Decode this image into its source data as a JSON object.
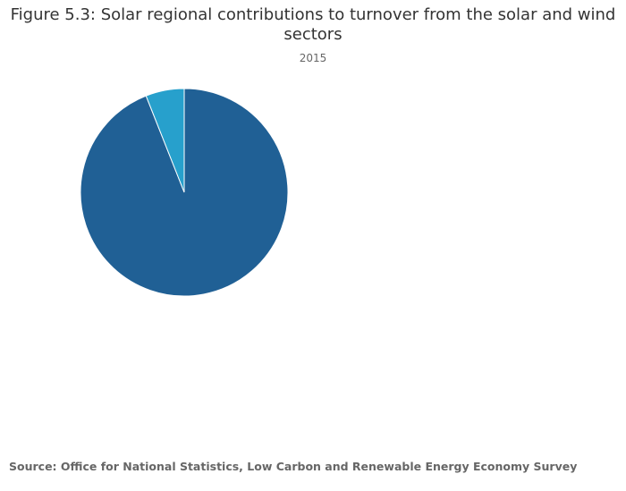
{
  "chart_data": {
    "type": "pie",
    "title_lines": [
      "Figure 5.3: Solar regional contributions to turnover from the solar and wind",
      "sectors"
    ],
    "subtitle": "2015",
    "slices": [
      {
        "label": "",
        "value": 94,
        "color": "#206095"
      },
      {
        "label": "",
        "value": 6,
        "color": "#27a0cc"
      }
    ],
    "legend": "none"
  },
  "source": "Source: Office for National Statistics, Low Carbon and Renewable Energy Economy Survey"
}
